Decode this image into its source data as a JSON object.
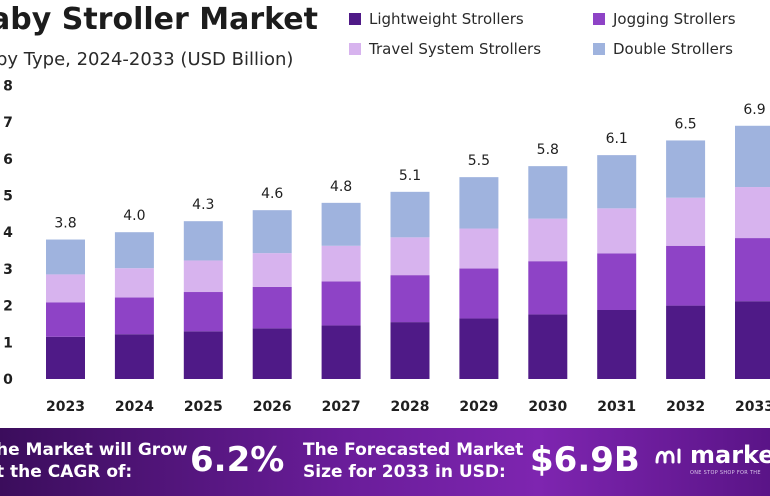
{
  "header": {
    "title": "aby Stroller Market",
    "subtitle": "by Type, 2024-2033 (USD Billion)"
  },
  "colors": {
    "lightweight": "#4f1a87",
    "jogging": "#8e43c6",
    "travel": "#d7b3ee",
    "double": "#9fb3de",
    "footer_bg": "#6a1d9a"
  },
  "legend": [
    {
      "label": "Lightweight Strollers",
      "color": "#4f1a87"
    },
    {
      "label": "Jogging Strollers",
      "color": "#8e43c6"
    },
    {
      "label": "Travel System Strollers",
      "color": "#d7b3ee"
    },
    {
      "label": "Double Strollers",
      "color": "#9fb3de"
    }
  ],
  "chart_data": {
    "type": "bar",
    "stacked": true,
    "categories": [
      "2023",
      "2024",
      "2025",
      "2026",
      "2027",
      "2028",
      "2029",
      "2030",
      "2031",
      "2032",
      "2033"
    ],
    "series": [
      {
        "name": "Lightweight Strollers",
        "values": [
          1.15,
          1.22,
          1.3,
          1.38,
          1.46,
          1.55,
          1.65,
          1.76,
          1.88,
          2.0,
          2.12
        ]
      },
      {
        "name": "Jogging Strollers",
        "values": [
          0.94,
          1.0,
          1.07,
          1.13,
          1.2,
          1.28,
          1.36,
          1.45,
          1.54,
          1.63,
          1.72
        ]
      },
      {
        "name": "Travel System Strollers",
        "values": [
          0.76,
          0.8,
          0.86,
          0.92,
          0.97,
          1.03,
          1.09,
          1.16,
          1.23,
          1.31,
          1.39
        ]
      },
      {
        "name": "Double Strollers",
        "values": [
          0.95,
          0.98,
          1.07,
          1.17,
          1.17,
          1.24,
          1.4,
          1.43,
          1.45,
          1.56,
          1.67
        ]
      }
    ],
    "totals": [
      3.8,
      4.0,
      4.3,
      4.6,
      4.8,
      5.1,
      5.5,
      5.8,
      6.1,
      6.5,
      6.9
    ],
    "total_labels": [
      "3.8",
      "4.0",
      "4.3",
      "4.6",
      "4.8",
      "5.1",
      "5.5",
      "5.8",
      "6.1",
      "6.5",
      "6.9"
    ],
    "y_ticks": [
      "0",
      "1",
      "2",
      "3",
      "4",
      "5",
      "6",
      "7",
      "8"
    ],
    "ylim": [
      0,
      8
    ],
    "grid": false,
    "legend_position": "top-right"
  },
  "footer": {
    "growth_text_line1": "he Market will Grow",
    "growth_text_line2": "t the CAGR of:",
    "cagr": "6.2%",
    "forecast_text_line1": "The Forecasted Market",
    "forecast_text_line2": "Size for 2033 in USD:",
    "forecast_value": "$6.9B",
    "brand": "market",
    "brand_tagline": "ONE STOP SHOP FOR THE"
  }
}
